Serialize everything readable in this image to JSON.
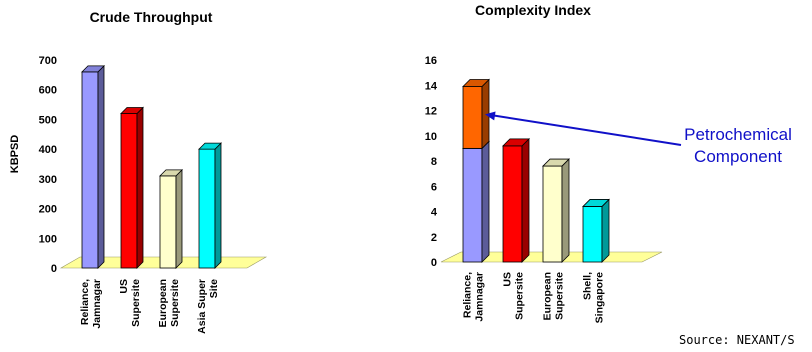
{
  "chart_data": [
    {
      "type": "bar",
      "title": "Crude Throughput",
      "ylabel": "KBPSD",
      "xlabel": "",
      "ylim": [
        0,
        700
      ],
      "ticks": [
        0,
        100,
        200,
        300,
        400,
        500,
        600,
        700
      ],
      "categories": [
        [
          "Reliance,",
          "Jamnagar"
        ],
        [
          "US",
          "Supersite"
        ],
        [
          "European",
          "Supersite"
        ],
        [
          "Asia Super",
          "Site"
        ]
      ],
      "values": [
        660,
        520,
        310,
        400
      ],
      "colors": [
        "#9999ff",
        "#ff0000",
        "#ffffcc",
        "#00ffff"
      ],
      "grid": false,
      "legend": "none"
    },
    {
      "type": "bar",
      "stacked": true,
      "title": "Complexity Index",
      "ylabel": "",
      "xlabel": "",
      "ylim": [
        0,
        16
      ],
      "ticks": [
        0,
        2,
        4,
        6,
        8,
        10,
        12,
        14,
        16
      ],
      "categories": [
        [
          "Reliance,",
          "Jamnagar"
        ],
        [
          "US",
          "Supersite"
        ],
        [
          "European",
          "Supersite"
        ],
        [
          "Shell,",
          "Singapore"
        ]
      ],
      "series": [
        {
          "values": [
            9,
            9.2,
            7.6,
            4.4
          ],
          "colors": [
            "#9999ff",
            "#ff0000",
            "#ffffcc",
            "#00ffff"
          ]
        },
        {
          "values": [
            4.9,
            0,
            0,
            0
          ],
          "colors": [
            "#ff6600",
            "#ff6600",
            "#ff6600",
            "#ff6600"
          ]
        }
      ],
      "annotation": {
        "lines": [
          "Petrochemical",
          "Component"
        ],
        "target_category": 0
      },
      "grid": false,
      "legend": "none"
    }
  ],
  "source": "Source: NEXANT/S",
  "colors": {
    "floor": "#ffff99",
    "callout": "#1010c8",
    "outline": "#000000"
  }
}
